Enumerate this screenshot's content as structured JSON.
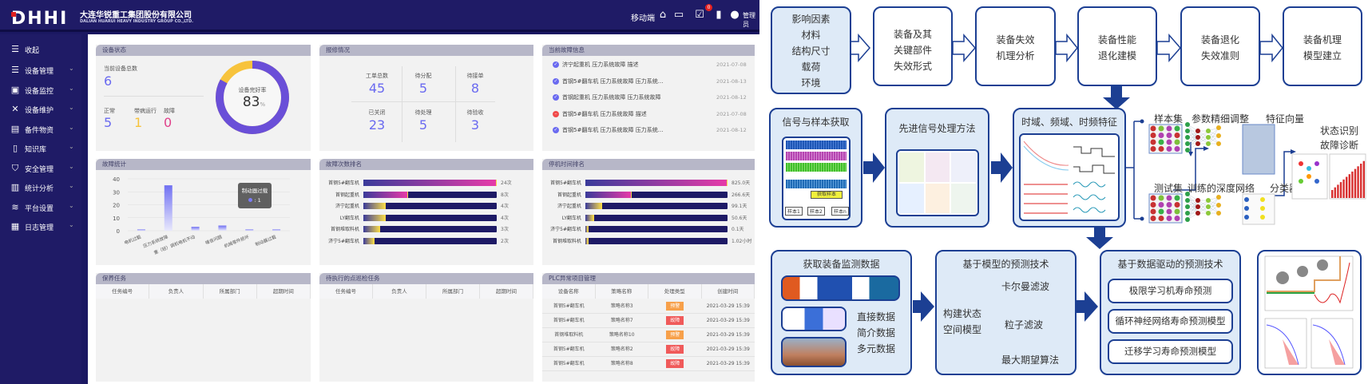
{
  "header": {
    "logo": "DHHI",
    "company_cn": "大连华锐重工集团股份有限公司",
    "company_en": "DALIAN HUARUI HEAVY INDUSTRY GROUP CO.,LTD.",
    "mobile": "移动端",
    "badge": "0",
    "user": "管理员",
    "icons": [
      "home-icon",
      "monitor-chart-icon",
      "calendar-check-icon",
      "book-icon",
      "user-icon"
    ]
  },
  "sidebar": {
    "collapse": "收起",
    "items": [
      {
        "label": "设备管理",
        "icon": "server-icon"
      },
      {
        "label": "设备监控",
        "icon": "monitor-icon"
      },
      {
        "label": "设备维护",
        "icon": "tools-icon"
      },
      {
        "label": "备件物资",
        "icon": "box-icon"
      },
      {
        "label": "知识库",
        "icon": "book-icon"
      },
      {
        "label": "安全管理",
        "icon": "shield-icon"
      },
      {
        "label": "统计分析",
        "icon": "stats-icon"
      },
      {
        "label": "平台设置",
        "icon": "layers-icon"
      },
      {
        "label": "日志管理",
        "icon": "log-icon"
      }
    ]
  },
  "status": {
    "title": "设备状态",
    "total_label": "当前设备总数",
    "total": "6",
    "normal_label": "正常",
    "normal": "5",
    "sick_label": "带病运行",
    "sick": "1",
    "fault_label": "故障",
    "fault": "0",
    "rate_label": "设备完好率",
    "rate": "83",
    "rate_unit": "%",
    "rate_value": 83,
    "colors": {
      "good": "#6a4fd8",
      "bad": "#f7c33c"
    }
  },
  "repair": {
    "title": "报修情况",
    "cells": [
      {
        "label": "工单总数",
        "value": "45"
      },
      {
        "label": "待分配",
        "value": "5"
      },
      {
        "label": "待接单",
        "value": "8"
      },
      {
        "label": "已关闭",
        "value": "23"
      },
      {
        "label": "待处理",
        "value": "5"
      },
      {
        "label": "待验收",
        "value": "3"
      }
    ]
  },
  "faults": {
    "title": "当前故障信息",
    "items": [
      {
        "text": "济宁起重机 压力系统故障 描述",
        "date": "2021-07-08",
        "state": "ok"
      },
      {
        "text": "首钢5#翻车机 压力系统故障 压力系统...",
        "date": "2021-08-13",
        "state": "ok"
      },
      {
        "text": "首钢起重机 压力系统故障 压力系统故障",
        "date": "2021-08-12",
        "state": "ok"
      },
      {
        "text": "首钢5#翻车机 压力系统故障 描述",
        "date": "2021-07-08",
        "state": "error"
      },
      {
        "text": "首钢5#翻车机 压力系统故障 压力系统...",
        "date": "2021-08-12",
        "state": "ok"
      }
    ]
  },
  "chart_data": [
    {
      "type": "bar",
      "title": "故障统计",
      "categories": [
        "电机过载",
        "压力系统故障",
        "重（轻）调机电机不动",
        "噪音问题",
        "机械零件损坏",
        "制动器过载"
      ],
      "values": [
        1,
        35,
        3,
        4,
        1,
        1
      ],
      "ylim": [
        0,
        40
      ],
      "yticks": [
        0,
        10,
        20,
        30,
        40
      ],
      "grid": true,
      "tooltip": {
        "label": "制动器过载",
        "value": ": 1"
      }
    },
    {
      "type": "bar",
      "orientation": "horizontal",
      "title": "故障次数排名",
      "categories": [
        "首钢5#翻车机",
        "首钢起重机",
        "济宁起重机",
        "LY翻车机",
        "首钢堆取料机",
        "济宁5#翻车机"
      ],
      "values": [
        24,
        8,
        4,
        4,
        3,
        2
      ],
      "labels": [
        "24次",
        "8次",
        "4次",
        "4次",
        "3次",
        "2次"
      ]
    },
    {
      "type": "bar",
      "orientation": "horizontal",
      "title": "停机时间排名",
      "categories": [
        "首钢5#翻车机",
        "首钢起重机",
        "济宁起重机",
        "LY翻车机",
        "济宁5#翻车机",
        "首钢堆取料机"
      ],
      "values": [
        825.0,
        266.6,
        99.1,
        50.6,
        0.1,
        0.0425
      ],
      "labels": [
        "825.0天",
        "266.6天",
        "99.1天",
        "50.6天",
        "0.1天",
        "1.02小时"
      ]
    }
  ],
  "maint": {
    "title": "保养任务",
    "cols": [
      "任务编号",
      "负责人",
      "所属部门",
      "超期时间"
    ]
  },
  "inspect": {
    "title": "待执行的点巡检任务",
    "cols": [
      "任务编号",
      "负责人",
      "所属部门",
      "超期时间"
    ]
  },
  "plc": {
    "title": "PLC异常项目管理",
    "cols": [
      "设备名称",
      "策略名称",
      "处理类型",
      "创建时间"
    ],
    "rows": [
      {
        "device": "首钢5#翻车机",
        "strategy": "策略名称3",
        "type": "预警",
        "time": "2021-03-29 15:39"
      },
      {
        "device": "首钢5#翻车机",
        "strategy": "策略名称7",
        "type": "故障",
        "time": "2021-03-29 15:39"
      },
      {
        "device": "首钢堆取料机",
        "strategy": "策略名称10",
        "type": "预警",
        "time": "2021-03-29 15:39"
      },
      {
        "device": "首钢5#翻车机",
        "strategy": "策略名称2",
        "type": "故障",
        "time": "2021-03-29 15:39"
      },
      {
        "device": "首钢5#翻车机",
        "strategy": "策略名称8",
        "type": "故障",
        "time": "2021-03-29 15:39"
      }
    ],
    "colors": {
      "预警": "#f7a04a",
      "故障": "#f05a5a"
    }
  },
  "diagram": {
    "top": [
      [
        "影响因素",
        "材料",
        "结构尺寸",
        "载荷",
        "环境"
      ],
      [
        "装备及其",
        "关键部件",
        "失效形式"
      ],
      [
        "装备失效",
        "机理分析"
      ],
      [
        "装备性能",
        "退化建模"
      ],
      [
        "装备退化",
        "失效准则"
      ],
      [
        "装备机理",
        "模型建立"
      ]
    ],
    "mid": [
      "信号与样本获取",
      "先进信号处理方法",
      "时域、频域、时频特征"
    ],
    "samples": [
      "样本1",
      "样本2",
      "样本n"
    ],
    "get_sample": "获取样本",
    "dl": {
      "train": "样本集",
      "tune": "参数精细调整",
      "test": "测试集",
      "net": "训练的深度网络",
      "feat": "特征向量",
      "cls": "分类器",
      "diag1": "状态识别",
      "diag2": "故障诊断"
    },
    "acq": {
      "title": "获取装备监测数据",
      "items": [
        "直接数据",
        "简介数据",
        "多元数据"
      ]
    },
    "model": {
      "title": "基于模型的预测技术",
      "left": [
        "构建状态",
        "空间模型"
      ],
      "items": [
        "卡尔曼滤波",
        "粒子滤波",
        "最大期望算法"
      ]
    },
    "data": {
      "title": "基于数据驱动的预测技术",
      "items": [
        "极限学习机寿命预测",
        "循环神经网络寿命预测模型",
        "迁移学习寿命预测模型"
      ]
    },
    "colors": {
      "border": "#1c3f93",
      "fill": "#deeaf7"
    }
  }
}
